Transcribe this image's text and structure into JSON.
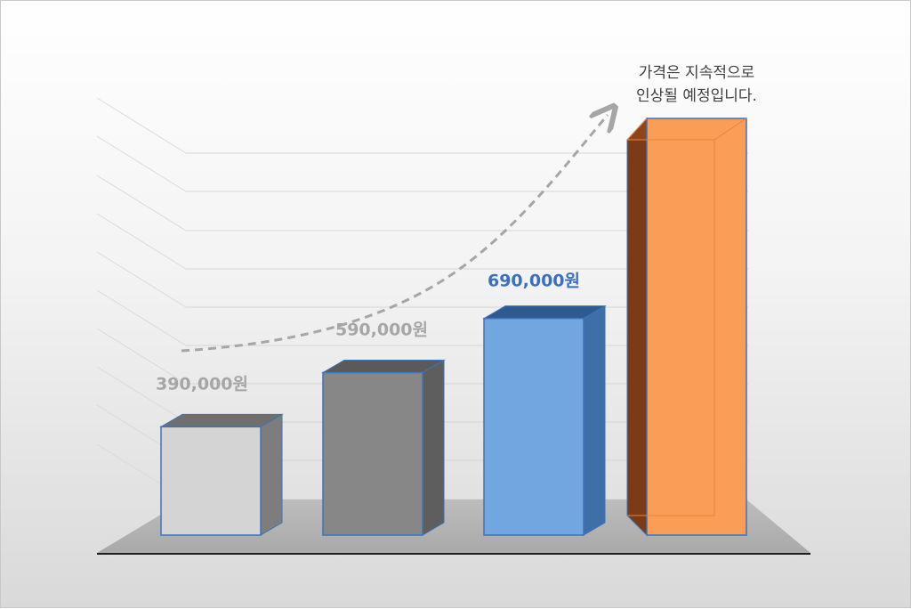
{
  "chart_data": {
    "type": "bar",
    "style": "3d-column",
    "title": "",
    "xlabel": "",
    "ylabel": "",
    "grid": true,
    "legend": "none",
    "ylim": [
      0,
      1
    ],
    "values": [
      0.26,
      0.39,
      0.52,
      1.0
    ],
    "data_labels": [
      "390,000원",
      "590,000원",
      "690,000원",
      ""
    ],
    "annotation": [
      "가격은 지속적으로",
      "인상될 예정입니다."
    ],
    "bars": [
      {
        "front": "#d4d4d4",
        "side": "#7d7d7d",
        "top": "#6f6f6f",
        "edge": "#3f73b8",
        "label_color": "#a6a6a6"
      },
      {
        "front": "#878787",
        "side": "#5e5e5e",
        "top": "#5a5a5a",
        "edge": "#3f73b8",
        "label_color": "#a6a6a6"
      },
      {
        "front": "#71a6e0",
        "side": "#3e6fa8",
        "top": "#2e5a90",
        "edge": "#3f73b8",
        "label_color": "#3a6fc4"
      },
      {
        "front": "#f99d57",
        "side": "#7a3b16",
        "top": "#b45a24",
        "edge": "#3f73b8",
        "label_color": "#f99d57"
      }
    ],
    "trend_arrow": {
      "style": "dashed",
      "color": "#a6a6a6"
    }
  }
}
